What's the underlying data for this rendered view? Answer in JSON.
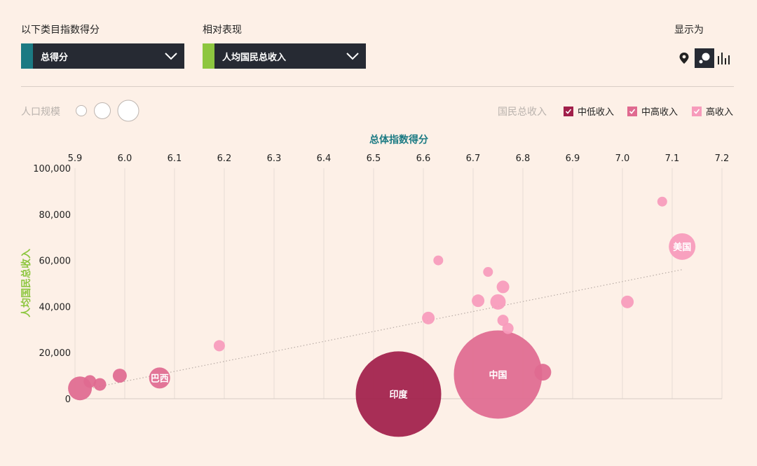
{
  "controls": {
    "category_label": "以下类目指数得分",
    "category_value": "总得分",
    "category_color": "#1b7a83",
    "relative_label": "相对表现",
    "relative_value": "人均国民总收入",
    "relative_color": "#8dc63f",
    "display_label": "显示为",
    "views": [
      {
        "icon": "map-pin-icon",
        "active": false
      },
      {
        "icon": "bubble-chart-icon",
        "active": true
      },
      {
        "icon": "bar-chart-icon",
        "active": false
      }
    ]
  },
  "legend": {
    "population_label": "人口规模",
    "income_title": "国民总收入",
    "items": [
      {
        "label": "中低收入",
        "color": "#a11f4a"
      },
      {
        "label": "中高收入",
        "color": "#e06a90"
      },
      {
        "label": "高收入",
        "color": "#f79bbb"
      }
    ]
  },
  "chart_data": {
    "type": "scatter",
    "xlabel": "总体指数得分",
    "ylabel": "人均国民总收入",
    "xlim": [
      5.9,
      7.2
    ],
    "ylim": [
      0,
      100000
    ],
    "x_ticks": [
      "5.9",
      "6.0",
      "6.1",
      "6.2",
      "6.3",
      "6.4",
      "6.5",
      "6.6",
      "6.7",
      "6.8",
      "6.9",
      "7.0",
      "7.1",
      "7.2"
    ],
    "y_ticks": [
      "0",
      "20,000",
      "40,000",
      "60,000",
      "80,000",
      "100,000"
    ],
    "grid": "vertical",
    "trendline": {
      "x": [
        5.93,
        7.12
      ],
      "y": [
        4500,
        56000
      ]
    },
    "points": [
      {
        "x": 5.91,
        "y": 4500,
        "r": 17,
        "group": "中高收入",
        "label": ""
      },
      {
        "x": 5.93,
        "y": 7500,
        "r": 9,
        "group": "中高收入",
        "label": ""
      },
      {
        "x": 5.95,
        "y": 6200,
        "r": 9,
        "group": "中高收入",
        "label": ""
      },
      {
        "x": 5.99,
        "y": 10000,
        "r": 10,
        "group": "中高收入",
        "label": ""
      },
      {
        "x": 6.07,
        "y": 9000,
        "r": 15,
        "group": "中高收入",
        "label": "巴西"
      },
      {
        "x": 6.19,
        "y": 23000,
        "r": 8,
        "group": "高收入",
        "label": ""
      },
      {
        "x": 6.55,
        "y": 2000,
        "r": 61,
        "group": "中低收入",
        "label": "印度"
      },
      {
        "x": 6.61,
        "y": 35000,
        "r": 9,
        "group": "高收入",
        "label": ""
      },
      {
        "x": 6.63,
        "y": 60000,
        "r": 7,
        "group": "高收入",
        "label": ""
      },
      {
        "x": 6.71,
        "y": 42500,
        "r": 9,
        "group": "高收入",
        "label": ""
      },
      {
        "x": 6.73,
        "y": 55000,
        "r": 7,
        "group": "高收入",
        "label": ""
      },
      {
        "x": 6.75,
        "y": 42000,
        "r": 11,
        "group": "高收入",
        "label": ""
      },
      {
        "x": 6.76,
        "y": 48500,
        "r": 9,
        "group": "高收入",
        "label": ""
      },
      {
        "x": 6.76,
        "y": 34000,
        "r": 8,
        "group": "高收入",
        "label": ""
      },
      {
        "x": 6.77,
        "y": 30500,
        "r": 8,
        "group": "高收入",
        "label": ""
      },
      {
        "x": 6.75,
        "y": 10500,
        "r": 63,
        "group": "中高收入",
        "label": "中国"
      },
      {
        "x": 6.84,
        "y": 11500,
        "r": 12,
        "group": "中高收入",
        "label": ""
      },
      {
        "x": 7.01,
        "y": 42000,
        "r": 9,
        "group": "高收入",
        "label": ""
      },
      {
        "x": 7.08,
        "y": 85500,
        "r": 7,
        "group": "高收入",
        "label": ""
      },
      {
        "x": 7.12,
        "y": 66000,
        "r": 19,
        "group": "高收入",
        "label": "美国"
      }
    ]
  }
}
